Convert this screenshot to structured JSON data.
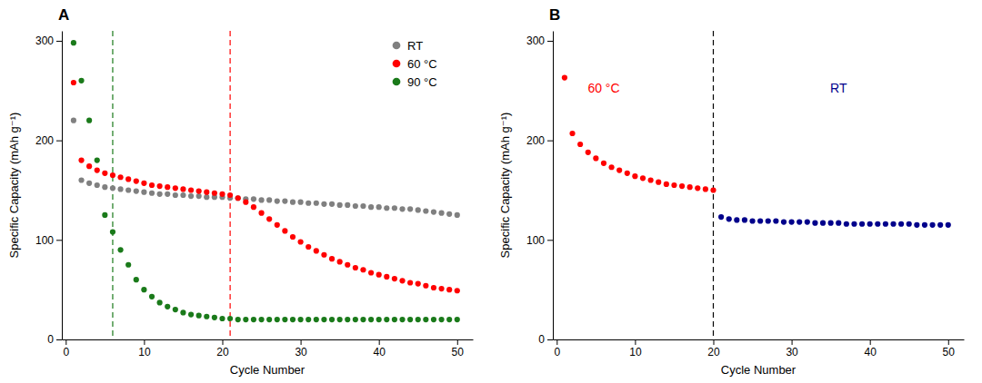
{
  "chart_data": [
    {
      "type": "scatter",
      "title": "A",
      "x_label": "Cycle Number",
      "y_label": "Specific Capacity (mAh g⁻¹)",
      "xlim": [
        -0.5,
        52
      ],
      "ylim": [
        0,
        310
      ],
      "xticks": [
        0,
        10,
        20,
        30,
        40,
        50
      ],
      "yticks": [
        0,
        100,
        200,
        300
      ],
      "grid": false,
      "legend": "upper right",
      "series": [
        {
          "name": "RT",
          "color": "#808080",
          "marker": "circle",
          "x": [
            1,
            2,
            3,
            4,
            5,
            6,
            7,
            8,
            9,
            10,
            11,
            12,
            13,
            14,
            15,
            16,
            17,
            18,
            19,
            20,
            21,
            22,
            23,
            24,
            25,
            26,
            27,
            28,
            29,
            30,
            31,
            32,
            33,
            34,
            35,
            36,
            37,
            38,
            39,
            40,
            41,
            42,
            43,
            44,
            45,
            46,
            47,
            48,
            49,
            50
          ],
          "values": [
            220,
            160,
            157,
            155,
            153,
            152,
            151,
            150,
            149,
            148,
            147,
            146,
            146,
            145,
            145,
            144,
            144,
            143,
            143,
            143,
            142,
            142,
            141,
            141,
            140,
            140,
            139,
            139,
            138,
            138,
            137,
            137,
            136,
            136,
            135,
            135,
            134,
            134,
            133,
            133,
            132,
            132,
            131,
            131,
            130,
            129,
            128,
            127,
            126,
            125
          ]
        },
        {
          "name": "60 °C",
          "color": "#FF0000",
          "marker": "circle",
          "x": [
            1,
            2,
            3,
            4,
            5,
            6,
            7,
            8,
            9,
            10,
            11,
            12,
            13,
            14,
            15,
            16,
            17,
            18,
            19,
            20,
            21,
            22,
            23,
            24,
            25,
            26,
            27,
            28,
            29,
            30,
            31,
            32,
            33,
            34,
            35,
            36,
            37,
            38,
            39,
            40,
            41,
            42,
            43,
            44,
            45,
            46,
            47,
            48,
            49,
            50
          ],
          "values": [
            258,
            180,
            174,
            170,
            167,
            165,
            163,
            161,
            159,
            157,
            155,
            154,
            153,
            152,
            151,
            150,
            149,
            148,
            147,
            146,
            145,
            142,
            138,
            133,
            127,
            121,
            115,
            109,
            103,
            98,
            93,
            89,
            85,
            81,
            78,
            75,
            72,
            70,
            67,
            65,
            63,
            61,
            59,
            57,
            56,
            54,
            52,
            51,
            50,
            49
          ]
        },
        {
          "name": "90 °C",
          "color": "#1a7a1a",
          "marker": "circle",
          "x": [
            1,
            2,
            3,
            4,
            5,
            6,
            7,
            8,
            9,
            10,
            11,
            12,
            13,
            14,
            15,
            16,
            17,
            18,
            19,
            20,
            21,
            22,
            23,
            24,
            25,
            26,
            27,
            28,
            29,
            30,
            31,
            32,
            33,
            34,
            35,
            36,
            37,
            38,
            39,
            40,
            41,
            42,
            43,
            44,
            45,
            46,
            47,
            48,
            49,
            50
          ],
          "values": [
            298,
            260,
            220,
            180,
            125,
            108,
            90,
            75,
            60,
            50,
            43,
            37,
            33,
            30,
            27,
            25,
            24,
            23,
            22,
            21,
            21,
            20,
            20,
            20,
            20,
            20,
            20,
            20,
            20,
            20,
            20,
            20,
            20,
            20,
            20,
            20,
            20,
            20,
            20,
            20,
            20,
            20,
            20,
            20,
            20,
            20,
            20,
            20,
            20,
            20
          ]
        }
      ],
      "vlines": [
        {
          "value": 6,
          "color": "#1a7a1a",
          "line_style": "dashed"
        },
        {
          "value": 21,
          "color": "#FF0000",
          "line_style": "dashed"
        }
      ]
    },
    {
      "type": "scatter",
      "title": "B",
      "x_label": "Cycle Number",
      "y_label": "Specific Capacity (mAh g⁻¹)",
      "xlim": [
        -0.5,
        52
      ],
      "ylim": [
        0,
        310
      ],
      "xticks": [
        0,
        10,
        20,
        30,
        40,
        50
      ],
      "yticks": [
        0,
        100,
        200,
        300
      ],
      "grid": false,
      "series": [
        {
          "color": "#FF0000",
          "marker": "circle",
          "x": [
            1,
            2,
            3,
            4,
            5,
            6,
            7,
            8,
            9,
            10,
            11,
            12,
            13,
            14,
            15,
            16,
            17,
            18,
            19,
            20
          ],
          "values": [
            263,
            207,
            196,
            188,
            182,
            177,
            173,
            170,
            167,
            164,
            162,
            160,
            158,
            156,
            155,
            154,
            153,
            152,
            151,
            150
          ]
        },
        {
          "color": "#00008B",
          "marker": "circle",
          "x": [
            21,
            22,
            23,
            24,
            25,
            26,
            27,
            28,
            29,
            30,
            31,
            32,
            33,
            34,
            35,
            36,
            37,
            38,
            39,
            40,
            41,
            42,
            43,
            44,
            45,
            46,
            47,
            48,
            49,
            50
          ],
          "values": [
            123,
            121,
            120,
            120,
            119,
            119,
            119,
            119,
            118,
            118,
            118,
            118,
            117,
            117,
            117,
            117,
            116,
            116,
            116,
            116,
            116,
            116,
            116,
            116,
            116,
            115,
            115,
            115,
            115,
            115
          ]
        }
      ],
      "vlines": [
        {
          "value": 20,
          "color": "black",
          "line_style": "dashed"
        }
      ],
      "annotations": [
        {
          "text": "60 °C",
          "x": 6,
          "y": 248,
          "color": "#FF0000"
        },
        {
          "text": "RT",
          "x": 36,
          "y": 248,
          "color": "#00008B"
        }
      ]
    }
  ]
}
